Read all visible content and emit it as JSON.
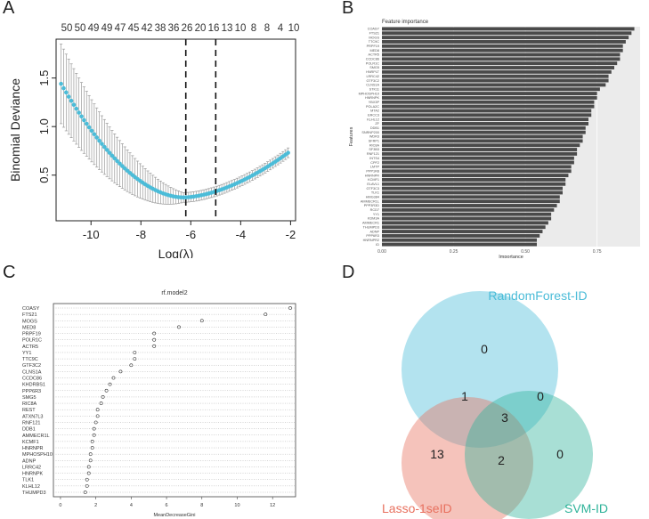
{
  "panels": {
    "a": "A",
    "b": "B",
    "c": "C",
    "d": "D"
  },
  "chart_data": [
    {
      "id": "A",
      "type": "line",
      "title": "",
      "xlabel": "Log(λ)",
      "ylabel": "Binomial Deviance",
      "xlim": [
        -11.4,
        -1.8
      ],
      "ylim": [
        0.03,
        1.9
      ],
      "xticks": [
        -10,
        -8,
        -6,
        -4,
        -2
      ],
      "yticks": [
        0.5,
        1.0,
        1.5
      ],
      "top_ticks": [
        "50",
        "50",
        "49",
        "49",
        "47",
        "45",
        "42",
        "38",
        "36",
        "26",
        "20",
        "16",
        "13",
        "10",
        "8",
        "8",
        "4",
        "10"
      ],
      "vlines": [
        -6.2,
        -5.0
      ],
      "series": [
        {
          "name": "Binomial Deviance",
          "color": "#4bbcd8",
          "points": 90,
          "x_range": [
            -11.2,
            -2.1
          ]
        }
      ]
    },
    {
      "id": "B",
      "type": "bar",
      "title": "Feature importance",
      "xlabel": "Importance",
      "ylabel": "Features",
      "xlim": [
        0,
        0.9
      ],
      "xticks": [
        "0.00",
        "0.25",
        "0.50",
        "0.75"
      ],
      "categories": [
        "COASY",
        "FTS21",
        "MOGS",
        "TTC9C",
        "PRPF19",
        "MED8",
        "ACTR5",
        "CCDC86",
        "POLR1C",
        "SMG5",
        "HNRPLT",
        "LRRC42",
        "GTF3C2",
        "CLNS1A",
        "STK11",
        "MPHOSPH10",
        "HNRNPK",
        "YBX3P",
        "POLA2C",
        "MTA2",
        "ERCC3",
        "KLHL12",
        "ZF",
        "DDB1",
        "SNRNP200",
        "WDR3",
        "SFRP1",
        "RIC8A",
        "SF3B3",
        "RNF121",
        "INTS4",
        "CPF2",
        "LMTP",
        "PPP1R8",
        "HNRNPR",
        "KCMF1",
        "ELAVL1",
        "GTF3C3",
        "TLK1",
        "HMG384",
        "AMMECR1L",
        "PPP3R3D",
        "RCD7",
        "YY1",
        "KDM3A",
        "AMMECR1",
        "THUMPD3",
        "ADNP",
        "PPP6R3",
        "HNRNPR2",
        "ID"
      ],
      "values": [
        0.88,
        0.87,
        0.86,
        0.85,
        0.84,
        0.84,
        0.83,
        0.83,
        0.82,
        0.81,
        0.8,
        0.79,
        0.79,
        0.78,
        0.76,
        0.75,
        0.75,
        0.74,
        0.74,
        0.73,
        0.73,
        0.72,
        0.72,
        0.71,
        0.71,
        0.7,
        0.7,
        0.69,
        0.68,
        0.68,
        0.67,
        0.67,
        0.66,
        0.66,
        0.65,
        0.64,
        0.64,
        0.63,
        0.63,
        0.62,
        0.62,
        0.61,
        0.6,
        0.59,
        0.59,
        0.58,
        0.57,
        0.56,
        0.55,
        0.54,
        0.54
      ]
    },
    {
      "id": "C",
      "type": "scatter",
      "title": "rf.model2",
      "xlabel": "MeanDecreaseGini",
      "xlim": [
        -0.4,
        13.3
      ],
      "xticks": [
        0,
        2,
        4,
        6,
        8,
        10,
        12
      ],
      "categories": [
        "COASY",
        "FTS21",
        "MOGS",
        "MED8",
        "PRPF19",
        "POLR1C",
        "ACTR5",
        "YY1",
        "TTC9C",
        "GTF3C2",
        "CLNS1A",
        "CCDC86",
        "KHDRBS1",
        "PPP6R3",
        "SMG5",
        "RIC8A",
        "REST",
        "ATXN7L3",
        "RNF121",
        "DDB1",
        "AMMECR1L",
        "KCMF1",
        "HNRNPR",
        "MPHOSPH10",
        "ADNP",
        "LRRC42",
        "HNRNPK",
        "TLK1",
        "KLHL12",
        "THUMPD3"
      ],
      "values": [
        13.0,
        11.6,
        8.0,
        6.7,
        5.3,
        5.3,
        5.3,
        4.2,
        4.2,
        4.0,
        3.4,
        3.0,
        2.8,
        2.6,
        2.4,
        2.3,
        2.1,
        2.1,
        2.0,
        1.9,
        1.9,
        1.8,
        1.8,
        1.7,
        1.7,
        1.6,
        1.6,
        1.5,
        1.5,
        1.4
      ]
    },
    {
      "id": "D",
      "type": "venn",
      "sets": [
        {
          "name": "RandomForest-ID",
          "color": "#4bbcd8"
        },
        {
          "name": "Lasso-1seID",
          "color": "#e8705e"
        },
        {
          "name": "SVM-ID",
          "color": "#2fb39a"
        }
      ],
      "regions": {
        "rf_only": 0,
        "rf_lasso": 1,
        "rf_svm": 0,
        "all": 3,
        "lasso_only": 13,
        "lasso_svm": 2,
        "svm_only": 0
      }
    }
  ]
}
